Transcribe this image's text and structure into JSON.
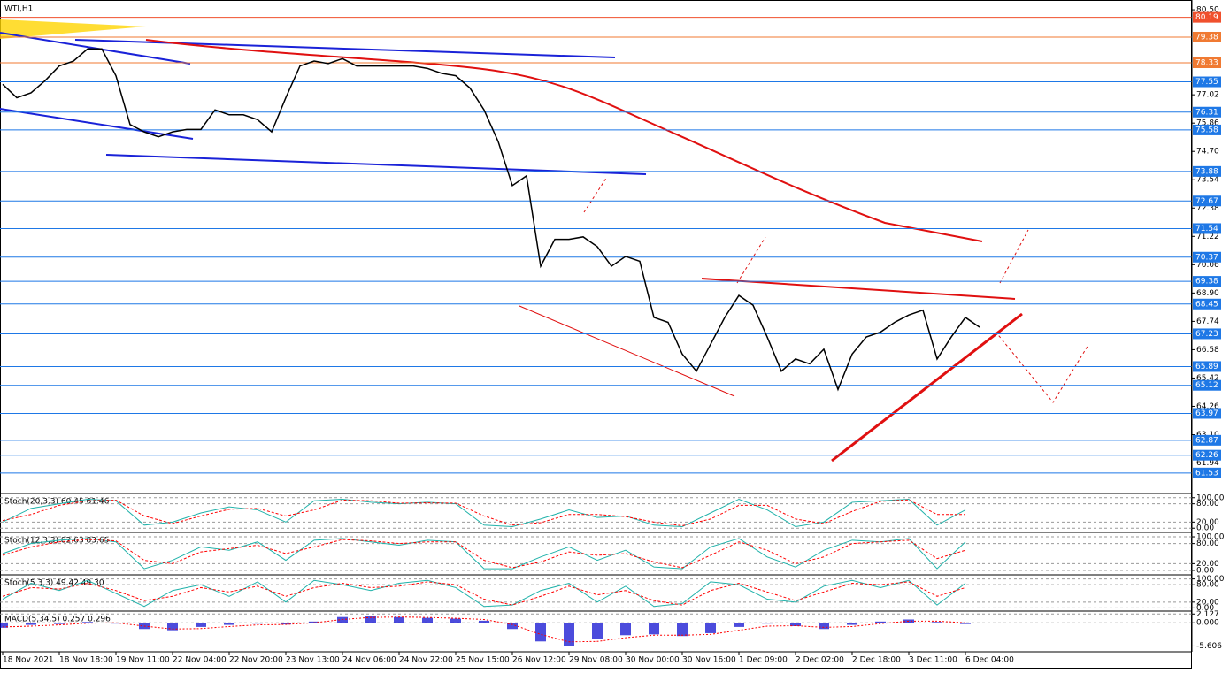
{
  "chart_data": [
    {
      "type": "line",
      "title": "WTI,H1",
      "color": "#000000",
      "categories": [
        "18 Nov 2021",
        null,
        null,
        null,
        "18 Nov 18:00",
        null,
        null,
        null,
        "19 Nov 11:00",
        null,
        null,
        null,
        "22 Nov 04:00",
        null,
        null,
        null,
        "22 Nov 20:00",
        null,
        null,
        null,
        "23 Nov 13:00",
        null,
        null,
        null,
        "24 Nov 06:00",
        null,
        null,
        null,
        "24 Nov 22:00",
        null,
        null,
        null,
        "25 Nov 15:00",
        null,
        null,
        null,
        "26 Nov 12:00",
        null,
        null,
        null,
        "29 Nov 08:00",
        null,
        null,
        null,
        "30 Nov 00:00",
        null,
        null,
        null,
        "30 Nov 16:00",
        null,
        null,
        null,
        "1 Dec 09:00",
        null,
        null,
        null,
        "2 Dec 02:00",
        null,
        null,
        null,
        "2 Dec 18:00",
        null,
        null,
        null,
        "3 Dec 11:00",
        null,
        null,
        null,
        "6 Dec 04:00",
        null
      ],
      "values": [
        77.45,
        76.9,
        77.1,
        77.6,
        78.2,
        78.4,
        78.9,
        78.9,
        77.8,
        75.8,
        75.5,
        75.3,
        75.5,
        75.6,
        75.6,
        76.4,
        76.2,
        76.2,
        76.0,
        75.5,
        76.9,
        78.2,
        78.4,
        78.3,
        78.5,
        78.2,
        78.2,
        78.2,
        78.2,
        78.2,
        78.1,
        77.9,
        77.8,
        77.3,
        76.4,
        75.1,
        73.3,
        73.7,
        70.0,
        71.1,
        71.1,
        71.2,
        70.8,
        70.0,
        70.4,
        70.2,
        67.9,
        67.7,
        66.4,
        65.7,
        66.8,
        67.9,
        68.8,
        68.4,
        67.1,
        65.7,
        66.2,
        66.0,
        66.6,
        64.95,
        66.4,
        67.1,
        67.3,
        67.7,
        68.0,
        68.2,
        66.2,
        67.1,
        67.9,
        67.5
      ],
      "ylim": [
        60.8,
        80.72
      ],
      "yticks": [
        {
          "value": 80.5,
          "label": "80.50"
        },
        77.02,
        75.86,
        {
          "value": 74.7,
          "label": "74.70"
        },
        73.54,
        72.38,
        71.22,
        70.06,
        {
          "value": 68.9,
          "label": "68.90"
        },
        67.74,
        66.58,
        65.42,
        64.26,
        {
          "value": 63.1,
          "label": "63.10"
        },
        61.94
      ],
      "levels": [
        80.19,
        79.38,
        78.33,
        77.55,
        76.31,
        75.58,
        73.88,
        72.67,
        71.54,
        70.37,
        69.38,
        68.45,
        67.23,
        65.89,
        65.12,
        63.97,
        62.87,
        62.26,
        61.53
      ],
      "level_colors": [
        "#f0502d",
        "#f07a32",
        "#f07a32",
        "#1e78e6",
        "#1e78e6",
        "#1e78e6",
        "#1e78e6",
        "#1e78e6",
        "#1e78e6",
        "#1e78e6",
        "#1e78e6",
        "#1e78e6",
        "#1e78e6",
        "#1e78e6",
        "#1e78e6",
        "#1e78e6",
        "#1e78e6",
        "#1e78e6",
        "#1e78e6"
      ]
    },
    {
      "type": "oscillator",
      "title": "Stoch(20,3,3) 60.45 61.46",
      "ylim": [
        -8,
        108
      ],
      "yticks": [
        {
          "value": 100,
          "label": "100.00"
        },
        {
          "value": 80,
          "label": "80.00"
        },
        {
          "value": 20,
          "label": "20.00"
        },
        {
          "value": 0,
          "label": "0.00"
        }
      ],
      "grid": true,
      "series": [
        {
          "color": "#20b2aa",
          "values": [
            20,
            65,
            80,
            95,
            90,
            10,
            20,
            50,
            70,
            60,
            20,
            90,
            95,
            85,
            80,
            85,
            80,
            10,
            5,
            30,
            60,
            35,
            40,
            10,
            5,
            50,
            95,
            60,
            5,
            20,
            85,
            90,
            95,
            10,
            60
          ]
        },
        {
          "color": "#ff0000",
          "values": [
            25,
            45,
            75,
            90,
            92,
            40,
            15,
            40,
            62,
            65,
            40,
            60,
            92,
            90,
            82,
            83,
            82,
            40,
            10,
            18,
            45,
            45,
            38,
            20,
            8,
            30,
            75,
            75,
            30,
            15,
            55,
            88,
            93,
            45,
            45
          ]
        }
      ]
    },
    {
      "type": "oscillator",
      "title": "Stoch(12,3,3) 82.63 83.65",
      "ylim": [
        -8,
        108
      ],
      "yticks": [
        {
          "value": 100,
          "label": "100.00"
        },
        {
          "value": 80,
          "label": "80.00"
        },
        {
          "value": 20,
          "label": "20.00"
        },
        {
          "value": 0,
          "label": "0.00"
        }
      ],
      "grid": true,
      "series": [
        {
          "color": "#20b2aa",
          "values": [
            50,
            80,
            90,
            95,
            85,
            5,
            30,
            70,
            60,
            85,
            30,
            90,
            95,
            85,
            75,
            90,
            85,
            5,
            5,
            40,
            70,
            30,
            60,
            10,
            5,
            70,
            95,
            40,
            10,
            60,
            90,
            85,
            95,
            5,
            85
          ]
        },
        {
          "color": "#ff0000",
          "values": [
            45,
            70,
            85,
            92,
            88,
            30,
            20,
            55,
            65,
            75,
            50,
            70,
            92,
            88,
            80,
            85,
            85,
            30,
            8,
            25,
            55,
            45,
            50,
            25,
            8,
            45,
            85,
            60,
            20,
            40,
            80,
            85,
            90,
            35,
            60
          ]
        }
      ]
    },
    {
      "type": "oscillator",
      "title": "Stoch(5,3,3) 49.42 49.30",
      "ylim": [
        -8,
        108
      ],
      "yticks": [
        {
          "value": 100,
          "label": "100.00"
        },
        {
          "value": 80,
          "label": "80.00"
        },
        {
          "value": 20,
          "label": "20.00"
        },
        {
          "value": 0,
          "label": "0.00"
        }
      ],
      "grid": true,
      "series": [
        {
          "color": "#20b2aa",
          "values": [
            30,
            85,
            60,
            95,
            50,
            5,
            60,
            80,
            40,
            90,
            20,
            95,
            80,
            60,
            85,
            95,
            70,
            5,
            10,
            60,
            85,
            20,
            75,
            5,
            15,
            90,
            80,
            30,
            20,
            75,
            95,
            70,
            95,
            10,
            85
          ]
        },
        {
          "color": "#ff0000",
          "values": [
            40,
            70,
            65,
            85,
            60,
            25,
            40,
            70,
            55,
            75,
            40,
            70,
            85,
            70,
            75,
            90,
            80,
            30,
            10,
            40,
            75,
            45,
            60,
            25,
            10,
            60,
            85,
            55,
            25,
            55,
            85,
            80,
            90,
            40,
            70
          ]
        }
      ]
    },
    {
      "type": "macd",
      "title": "MACD(5,34,5) 0.257 0.296",
      "ylim": [
        -7,
        2.4
      ],
      "yticks": [
        2.127,
        {
          "value": 0,
          "label": "0.000"
        },
        -5.606
      ],
      "grid": true,
      "series": [
        {
          "color": "#0000cd",
          "values": [
            -1.2,
            -0.5,
            -0.3,
            0.2,
            -0.2,
            -1.5,
            -1.8,
            -1.0,
            -0.5,
            -0.2,
            -0.4,
            0.3,
            1.4,
            1.6,
            1.4,
            1.2,
            1.0,
            0.5,
            -1.5,
            -4.5,
            -5.6,
            -4.0,
            -3.0,
            -2.8,
            -3.2,
            -2.5,
            -1.0,
            -0.2,
            -0.8,
            -1.5,
            -0.5,
            0.3,
            0.8,
            0.2,
            -0.3
          ]
        },
        {
          "color": "#ff0000",
          "values": [
            -1.0,
            -0.8,
            -0.5,
            -0.1,
            0.0,
            -0.8,
            -1.5,
            -1.4,
            -0.9,
            -0.5,
            -0.4,
            0.0,
            0.8,
            1.3,
            1.4,
            1.3,
            1.1,
            0.8,
            -0.4,
            -2.8,
            -4.6,
            -4.5,
            -3.6,
            -3.0,
            -3.0,
            -2.8,
            -1.8,
            -0.8,
            -0.7,
            -1.1,
            -0.9,
            -0.2,
            0.4,
            0.4,
            0.0
          ]
        }
      ]
    }
  ]
}
